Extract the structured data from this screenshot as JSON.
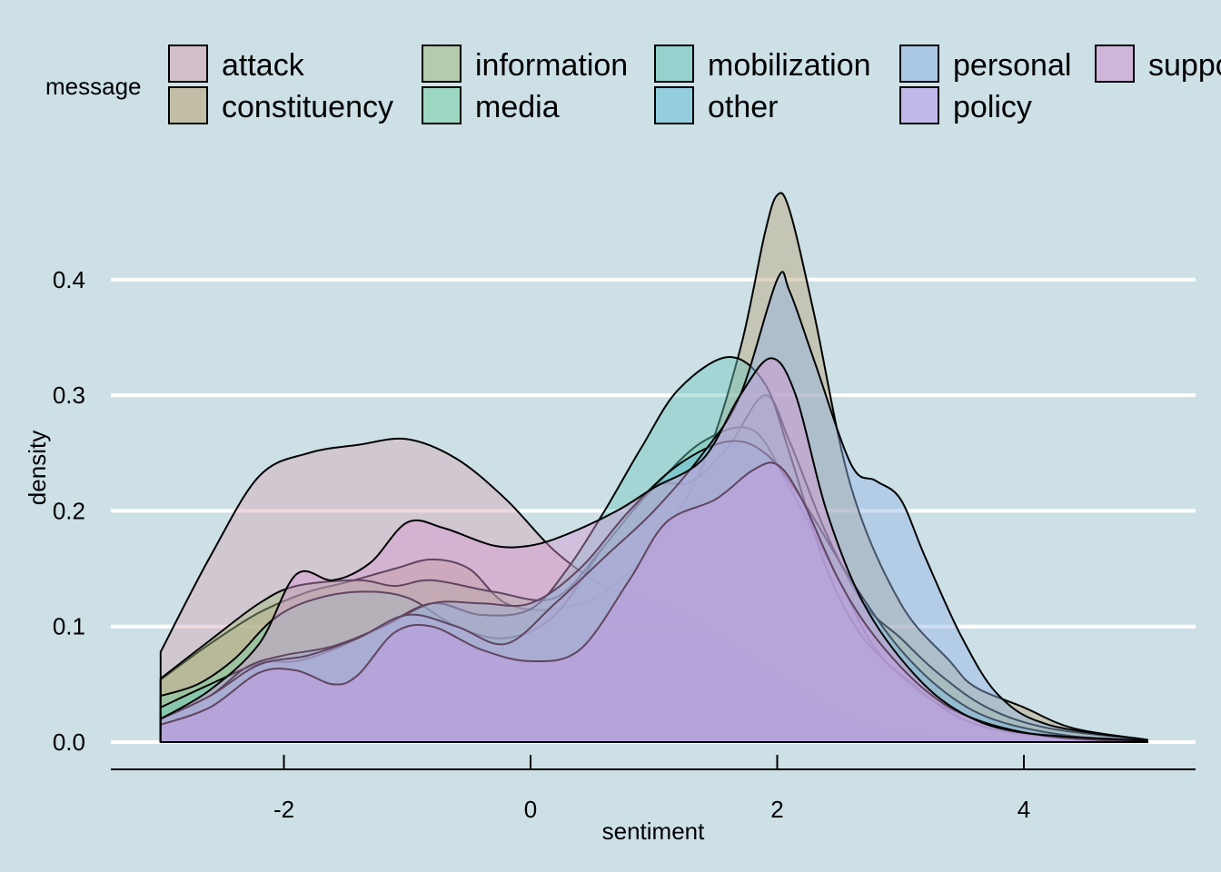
{
  "chart_data": {
    "type": "area",
    "title": "",
    "xlabel": "sentiment",
    "ylabel": "density",
    "xlim": [
      -3.4,
      5.4
    ],
    "ylim": [
      0.0,
      0.48
    ],
    "x_ticks": [
      -2,
      0,
      2,
      4
    ],
    "x_tick_labels": [
      "-2",
      "0",
      "2",
      "4"
    ],
    "y_ticks": [
      0.0,
      0.1,
      0.2,
      0.3,
      0.4
    ],
    "y_tick_labels": [
      "0.0",
      "0.1",
      "0.2",
      "0.3",
      "0.4"
    ],
    "grid": "horizontal",
    "legend_placement": "top",
    "legend_title": "message",
    "background": "#cde0e6",
    "series": [
      {
        "name": "attack",
        "color": "#d6a8b5",
        "points": [
          [
            -3,
            0.078
          ],
          [
            -2.6,
            0.16
          ],
          [
            -2.2,
            0.23
          ],
          [
            -1.8,
            0.25
          ],
          [
            -1.4,
            0.257
          ],
          [
            -1,
            0.262
          ],
          [
            -0.6,
            0.245
          ],
          [
            -0.2,
            0.21
          ],
          [
            0.2,
            0.165
          ],
          [
            0.6,
            0.135
          ],
          [
            1,
            0.122
          ],
          [
            1.4,
            0.1
          ],
          [
            1.8,
            0.073
          ],
          [
            2.2,
            0.045
          ],
          [
            2.6,
            0.02
          ],
          [
            3,
            0.008
          ],
          [
            3.5,
            0.003
          ],
          [
            4,
            0.001
          ],
          [
            5,
            0.0
          ]
        ]
      },
      {
        "name": "constituency",
        "color": "#bba57a",
        "points": [
          [
            -3,
            0.054
          ],
          [
            -2.6,
            0.085
          ],
          [
            -2.2,
            0.112
          ],
          [
            -1.8,
            0.13
          ],
          [
            -1.5,
            0.138
          ],
          [
            -1.1,
            0.15
          ],
          [
            -0.8,
            0.158
          ],
          [
            -0.5,
            0.15
          ],
          [
            -0.2,
            0.12
          ],
          [
            0.2,
            0.115
          ],
          [
            0.6,
            0.13
          ],
          [
            1,
            0.17
          ],
          [
            1.4,
            0.24
          ],
          [
            1.7,
            0.34
          ],
          [
            1.9,
            0.44
          ],
          [
            2.0,
            0.473
          ],
          [
            2.1,
            0.46
          ],
          [
            2.3,
            0.37
          ],
          [
            2.6,
            0.22
          ],
          [
            3,
            0.12
          ],
          [
            3.4,
            0.07
          ],
          [
            3.6,
            0.048
          ],
          [
            4,
            0.03
          ],
          [
            4.4,
            0.012
          ],
          [
            5,
            0.002
          ]
        ]
      },
      {
        "name": "information",
        "color": "#a3bd86",
        "points": [
          [
            -3,
            0.055
          ],
          [
            -2.6,
            0.088
          ],
          [
            -2.2,
            0.12
          ],
          [
            -1.9,
            0.135
          ],
          [
            -1.4,
            0.14
          ],
          [
            -1.1,
            0.135
          ],
          [
            -0.8,
            0.14
          ],
          [
            -0.3,
            0.13
          ],
          [
            0.2,
            0.125
          ],
          [
            0.6,
            0.17
          ],
          [
            1,
            0.22
          ],
          [
            1.3,
            0.225
          ],
          [
            1.6,
            0.255
          ],
          [
            1.9,
            0.3
          ],
          [
            2.1,
            0.26
          ],
          [
            2.4,
            0.18
          ],
          [
            2.7,
            0.12
          ],
          [
            3,
            0.09
          ],
          [
            3.3,
            0.06
          ],
          [
            3.7,
            0.03
          ],
          [
            4.2,
            0.012
          ],
          [
            5,
            0.002
          ]
        ]
      },
      {
        "name": "media",
        "color": "#7ed0a8",
        "points": [
          [
            -3,
            0.04
          ],
          [
            -2.7,
            0.05
          ],
          [
            -2.4,
            0.072
          ],
          [
            -2.1,
            0.105
          ],
          [
            -1.8,
            0.122
          ],
          [
            -1.4,
            0.13
          ],
          [
            -1,
            0.125
          ],
          [
            -0.6,
            0.1
          ],
          [
            -0.2,
            0.09
          ],
          [
            0.2,
            0.11
          ],
          [
            0.6,
            0.17
          ],
          [
            1,
            0.22
          ],
          [
            1.4,
            0.26
          ],
          [
            1.8,
            0.27
          ],
          [
            2.1,
            0.22
          ],
          [
            2.5,
            0.14
          ],
          [
            2.8,
            0.08
          ],
          [
            3.2,
            0.04
          ],
          [
            3.6,
            0.02
          ],
          [
            4,
            0.008
          ],
          [
            5,
            0.001
          ]
        ]
      },
      {
        "name": "mobilization",
        "color": "#6fc7bd",
        "points": [
          [
            -3,
            0.03
          ],
          [
            -2.6,
            0.05
          ],
          [
            -2.2,
            0.068
          ],
          [
            -1.9,
            0.07
          ],
          [
            -1.6,
            0.08
          ],
          [
            -1.2,
            0.1
          ],
          [
            -0.8,
            0.12
          ],
          [
            -0.4,
            0.11
          ],
          [
            0,
            0.115
          ],
          [
            0.3,
            0.15
          ],
          [
            0.6,
            0.2
          ],
          [
            0.9,
            0.255
          ],
          [
            1.2,
            0.305
          ],
          [
            1.6,
            0.333
          ],
          [
            1.9,
            0.31
          ],
          [
            2.1,
            0.25
          ],
          [
            2.4,
            0.15
          ],
          [
            2.7,
            0.09
          ],
          [
            3.1,
            0.05
          ],
          [
            3.5,
            0.02
          ],
          [
            4,
            0.007
          ],
          [
            5,
            0.0
          ]
        ]
      },
      {
        "name": "other",
        "color": "#6cbfd9",
        "points": [
          [
            -3,
            0.02
          ],
          [
            -2.6,
            0.04
          ],
          [
            -2.3,
            0.065
          ],
          [
            -2,
            0.075
          ],
          [
            -1.6,
            0.083
          ],
          [
            -1.2,
            0.1
          ],
          [
            -0.8,
            0.12
          ],
          [
            -0.4,
            0.12
          ],
          [
            0,
            0.12
          ],
          [
            0.4,
            0.15
          ],
          [
            0.8,
            0.2
          ],
          [
            1.2,
            0.24
          ],
          [
            1.6,
            0.26
          ],
          [
            1.9,
            0.25
          ],
          [
            2.2,
            0.21
          ],
          [
            2.6,
            0.14
          ],
          [
            3,
            0.08
          ],
          [
            3.4,
            0.04
          ],
          [
            3.8,
            0.018
          ],
          [
            4.4,
            0.005
          ],
          [
            5,
            0.001
          ]
        ]
      },
      {
        "name": "personal",
        "color": "#94b5e6",
        "points": [
          [
            -3,
            0.02
          ],
          [
            -2.6,
            0.04
          ],
          [
            -2.2,
            0.067
          ],
          [
            -1.8,
            0.075
          ],
          [
            -1.4,
            0.09
          ],
          [
            -1,
            0.11
          ],
          [
            -0.6,
            0.1
          ],
          [
            -0.2,
            0.085
          ],
          [
            0.2,
            0.12
          ],
          [
            0.6,
            0.16
          ],
          [
            1,
            0.2
          ],
          [
            1.4,
            0.25
          ],
          [
            1.7,
            0.3
          ],
          [
            2.0,
            0.4
          ],
          [
            2.1,
            0.39
          ],
          [
            2.3,
            0.33
          ],
          [
            2.6,
            0.24
          ],
          [
            2.8,
            0.226
          ],
          [
            3.0,
            0.21
          ],
          [
            3.2,
            0.16
          ],
          [
            3.5,
            0.09
          ],
          [
            3.8,
            0.04
          ],
          [
            4.2,
            0.015
          ],
          [
            5,
            0.002
          ]
        ]
      },
      {
        "name": "policy",
        "color": "#b79ee8",
        "points": [
          [
            -3,
            0.015
          ],
          [
            -2.6,
            0.03
          ],
          [
            -2.2,
            0.06
          ],
          [
            -1.9,
            0.062
          ],
          [
            -1.6,
            0.05
          ],
          [
            -1.4,
            0.058
          ],
          [
            -1.1,
            0.095
          ],
          [
            -0.8,
            0.1
          ],
          [
            -0.4,
            0.08
          ],
          [
            0,
            0.07
          ],
          [
            0.4,
            0.08
          ],
          [
            0.8,
            0.14
          ],
          [
            1.1,
            0.19
          ],
          [
            1.5,
            0.21
          ],
          [
            1.8,
            0.235
          ],
          [
            2.0,
            0.24
          ],
          [
            2.2,
            0.21
          ],
          [
            2.5,
            0.14
          ],
          [
            2.8,
            0.09
          ],
          [
            3.2,
            0.045
          ],
          [
            3.6,
            0.02
          ],
          [
            4.2,
            0.005
          ],
          [
            5,
            0.0
          ]
        ]
      },
      {
        "name": "support",
        "color": "#d49ad4",
        "points": [
          [
            -3,
            0.02
          ],
          [
            -2.6,
            0.045
          ],
          [
            -2.2,
            0.085
          ],
          [
            -1.9,
            0.145
          ],
          [
            -1.6,
            0.14
          ],
          [
            -1.3,
            0.155
          ],
          [
            -1,
            0.19
          ],
          [
            -0.7,
            0.185
          ],
          [
            -0.3,
            0.17
          ],
          [
            0,
            0.17
          ],
          [
            0.3,
            0.18
          ],
          [
            0.7,
            0.2
          ],
          [
            1,
            0.22
          ],
          [
            1.4,
            0.245
          ],
          [
            1.7,
            0.3
          ],
          [
            1.95,
            0.332
          ],
          [
            2.15,
            0.3
          ],
          [
            2.4,
            0.2
          ],
          [
            2.7,
            0.12
          ],
          [
            3.1,
            0.06
          ],
          [
            3.5,
            0.025
          ],
          [
            4,
            0.008
          ],
          [
            5,
            0.001
          ]
        ]
      }
    ]
  }
}
